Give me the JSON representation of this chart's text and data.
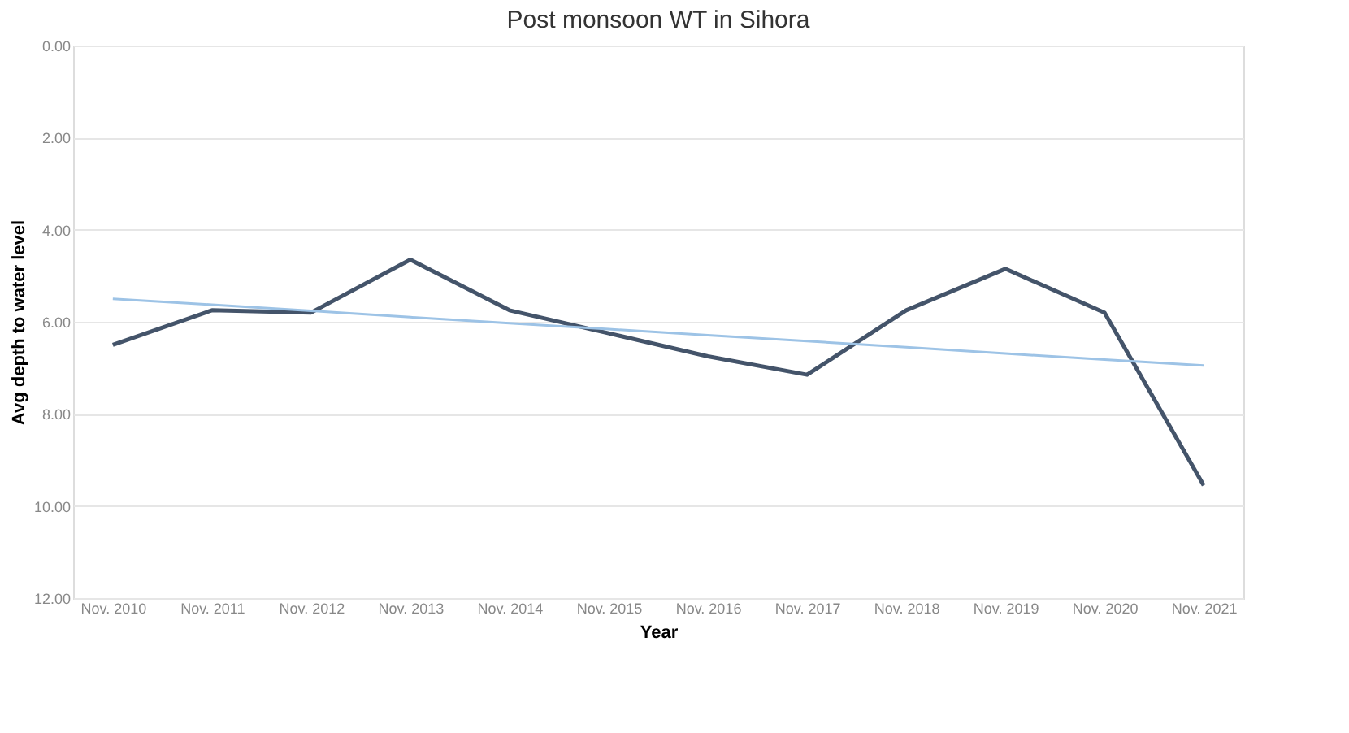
{
  "chart_data": {
    "type": "line",
    "title": "Post monsoon WT in Sihora",
    "xlabel": "Year",
    "ylabel": "Avg depth to water level",
    "categories": [
      "Nov. 2010",
      "Nov. 2011",
      "Nov. 2012",
      "Nov. 2013",
      "Nov. 2014",
      "Nov. 2015",
      "Nov. 2016",
      "Nov. 2017",
      "Nov. 2018",
      "Nov. 2019",
      "Nov. 2020",
      "Nov. 2021"
    ],
    "series": [
      {
        "color": "#44546a",
        "values": [
          6.5,
          5.75,
          5.8,
          4.65,
          5.75,
          6.25,
          6.75,
          7.15,
          5.75,
          4.85,
          5.8,
          9.55
        ]
      },
      {
        "color": "#9dc3e6",
        "values": [
          5.5,
          5.63,
          5.76,
          5.9,
          6.03,
          6.16,
          6.29,
          6.42,
          6.55,
          6.69,
          6.82,
          6.95
        ]
      }
    ],
    "ylim": [
      12,
      0
    ],
    "yticks": [
      {
        "value": 0,
        "label": "0.00"
      },
      {
        "value": 2,
        "label": "2.00"
      },
      {
        "value": 4,
        "label": "4.00"
      },
      {
        "value": 6,
        "label": "6.00"
      },
      {
        "value": 8,
        "label": "8.00"
      },
      {
        "value": 10,
        "label": "10.00"
      },
      {
        "value": 12,
        "label": "12.00"
      }
    ],
    "grid": "y",
    "legend": false,
    "marker": "none",
    "line_style": "solid"
  }
}
